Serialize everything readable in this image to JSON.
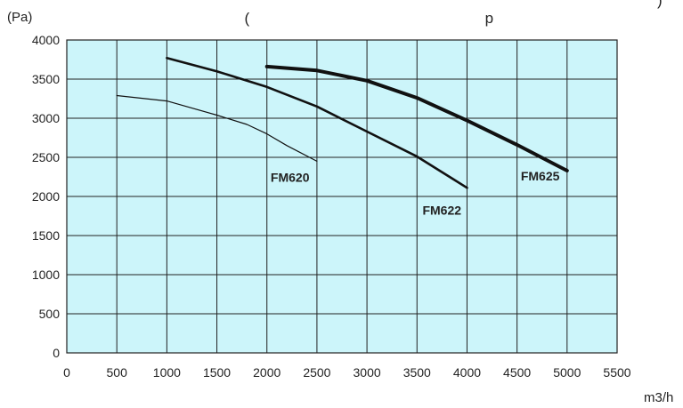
{
  "top_fragment": "(                                                        p",
  "top_fragment_right": ")",
  "chart_data": {
    "type": "line",
    "title": "",
    "xlabel": "m3/h",
    "ylabel": "(Pa)",
    "xlim": [
      0,
      5500
    ],
    "ylim": [
      0,
      4000
    ],
    "xticks": [
      0,
      500,
      1000,
      1500,
      2000,
      2500,
      3000,
      3500,
      4000,
      4500,
      5000,
      5500
    ],
    "yticks": [
      0,
      500,
      1000,
      1500,
      2000,
      2500,
      3000,
      3500,
      4000
    ],
    "grid": true,
    "background": "#ccf5fa",
    "series": [
      {
        "name": "FM620",
        "x": [
          500,
          1000,
          1500,
          1800,
          2000,
          2200,
          2500
        ],
        "y": [
          3290,
          3220,
          3040,
          2920,
          2800,
          2650,
          2450
        ],
        "stroke_weight": "thin"
      },
      {
        "name": "FM622",
        "x": [
          1000,
          1500,
          2000,
          2500,
          3000,
          3500,
          4000
        ],
        "y": [
          3770,
          3600,
          3400,
          3150,
          2830,
          2510,
          2110
        ],
        "stroke_weight": "medium"
      },
      {
        "name": "FM625",
        "x": [
          2000,
          2500,
          3000,
          3500,
          4000,
          4500,
          5000
        ],
        "y": [
          3660,
          3610,
          3480,
          3260,
          2970,
          2660,
          2330
        ],
        "stroke_weight": "thick"
      }
    ]
  }
}
